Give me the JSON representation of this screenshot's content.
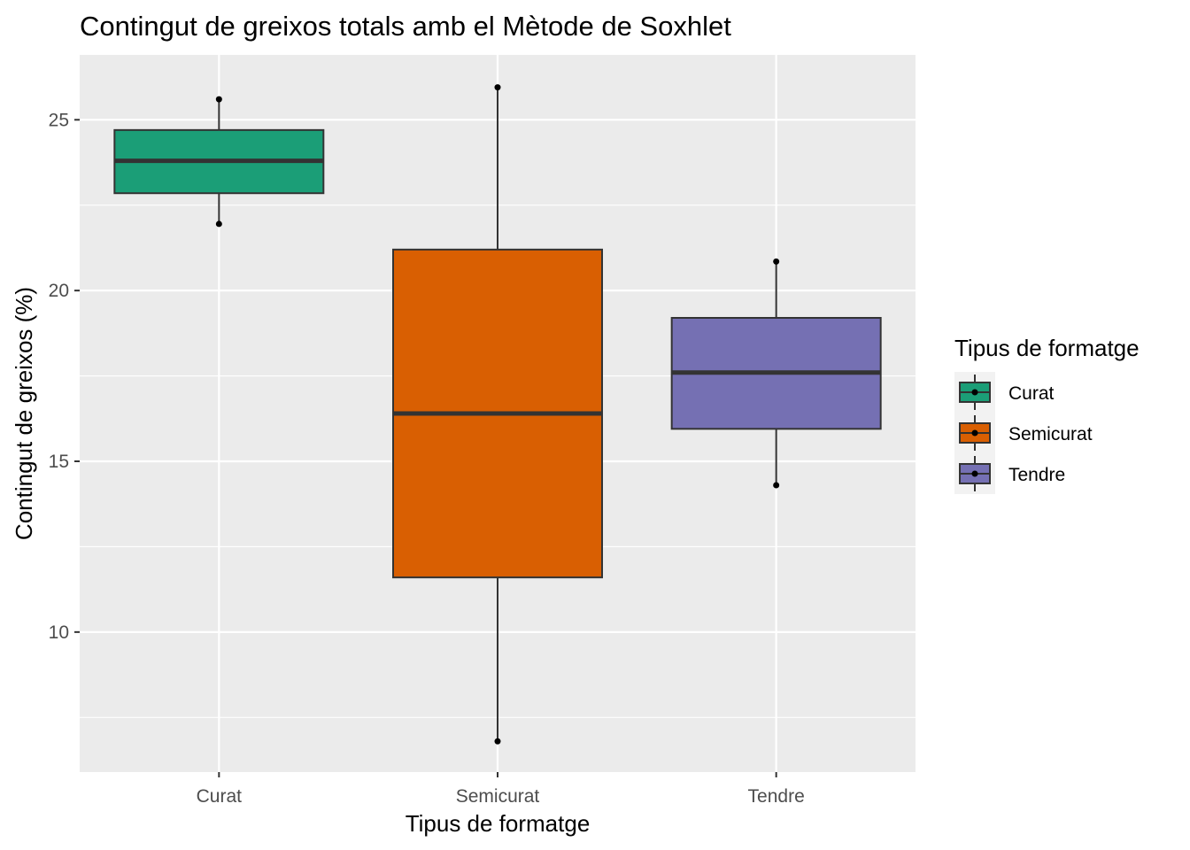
{
  "chart_data": {
    "type": "boxplot",
    "title": "Contingut de greixos totals amb el Mètode de Soxhlet",
    "xlabel": "Tipus de formatge",
    "ylabel": "Contingut de greixos (%)",
    "categories": [
      "Curat",
      "Semicurat",
      "Tendre"
    ],
    "ylim": [
      5.9,
      26.9
    ],
    "yticks": [
      10,
      15,
      20,
      25
    ],
    "grid": true,
    "legend": {
      "title": "Tipus de formatge",
      "position": "right",
      "entries": [
        "Curat",
        "Semicurat",
        "Tendre"
      ]
    },
    "colors": [
      "#1b9e77",
      "#d95f02",
      "#7570b3"
    ],
    "series": [
      {
        "category": "Curat",
        "min": 21.95,
        "q1": 22.85,
        "median": 23.8,
        "q3": 24.7,
        "max": 25.6
      },
      {
        "category": "Semicurat",
        "min": 6.8,
        "q1": 11.6,
        "median": 16.4,
        "q3": 21.2,
        "max": 25.95
      },
      {
        "category": "Tendre",
        "min": 14.3,
        "q1": 15.95,
        "median": 17.6,
        "q3": 19.2,
        "max": 20.85
      }
    ]
  }
}
